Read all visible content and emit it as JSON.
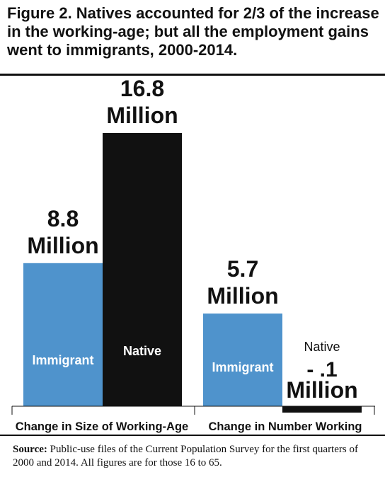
{
  "figure": {
    "title": "Figure 2. Natives accounted for 2/3 of the increase in the working-age; but all the employment gains went to immigrants, 2000-2014."
  },
  "source": {
    "label": "Source:",
    "text": "Public-use files of the Current Population Survey for the first quarters of 2000 and 2014. All figures are for those 16 to 65."
  },
  "colors": {
    "immigrant": "#4f93cc",
    "native": "#111111"
  },
  "chart_data": {
    "type": "bar",
    "title": "",
    "xlabel": "",
    "ylabel": "",
    "categories": [
      "Change in Size of Working-Age",
      "Change in Number Working"
    ],
    "unit": "Million",
    "series": [
      {
        "name": "Immigrant",
        "values": [
          8.8,
          5.7
        ],
        "value_labels": [
          "8.8",
          "5.7"
        ]
      },
      {
        "name": "Native",
        "values": [
          16.8,
          -0.1
        ],
        "value_labels": [
          "16.8",
          "- .1"
        ]
      }
    ],
    "ylim": [
      -0.3,
      18
    ],
    "grid": false,
    "legend": "none"
  }
}
